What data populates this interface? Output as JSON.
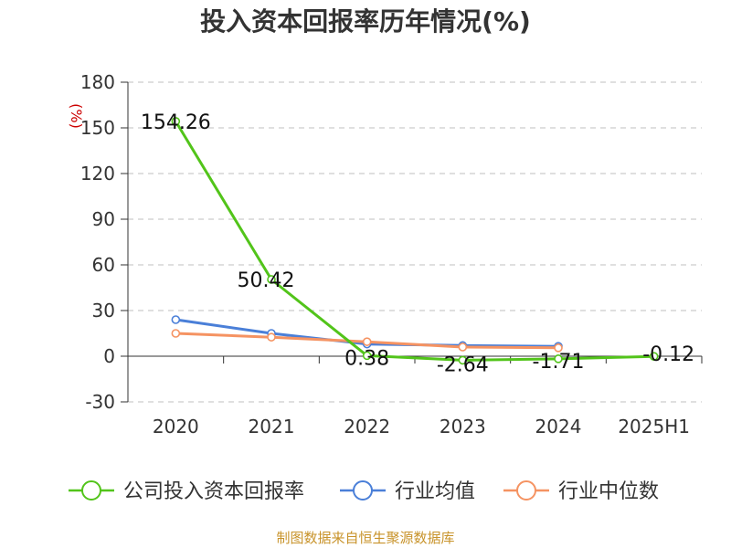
{
  "chart_data": {
    "type": "line",
    "title": "投入资本回报率历年情况(%)",
    "ylabel": "(%)",
    "xlabel": "",
    "categories": [
      "2020",
      "2021",
      "2022",
      "2023",
      "2024",
      "2025H1"
    ],
    "ylim": [
      -30,
      180
    ],
    "yticks": [
      -30,
      0,
      30,
      60,
      90,
      120,
      150,
      180
    ],
    "grid": true,
    "legend_position": "bottom",
    "series": [
      {
        "name": "公司投入资本回报率",
        "color": "#52c41a",
        "values": [
          154.26,
          50.42,
          0.38,
          -2.64,
          -1.71,
          -0.12
        ],
        "labels": [
          "154.26",
          "50.42",
          "0.38",
          "-2.64",
          "-1.71",
          "-0.12"
        ]
      },
      {
        "name": "行业均值",
        "color": "#4a7fd8",
        "values": [
          24,
          15,
          8,
          7,
          6.5,
          null
        ]
      },
      {
        "name": "行业中位数",
        "color": "#f59362",
        "values": [
          15,
          12.5,
          9.5,
          6,
          5.5,
          null
        ]
      }
    ]
  },
  "footer": {
    "source": "制图数据来自恒生聚源数据库"
  }
}
